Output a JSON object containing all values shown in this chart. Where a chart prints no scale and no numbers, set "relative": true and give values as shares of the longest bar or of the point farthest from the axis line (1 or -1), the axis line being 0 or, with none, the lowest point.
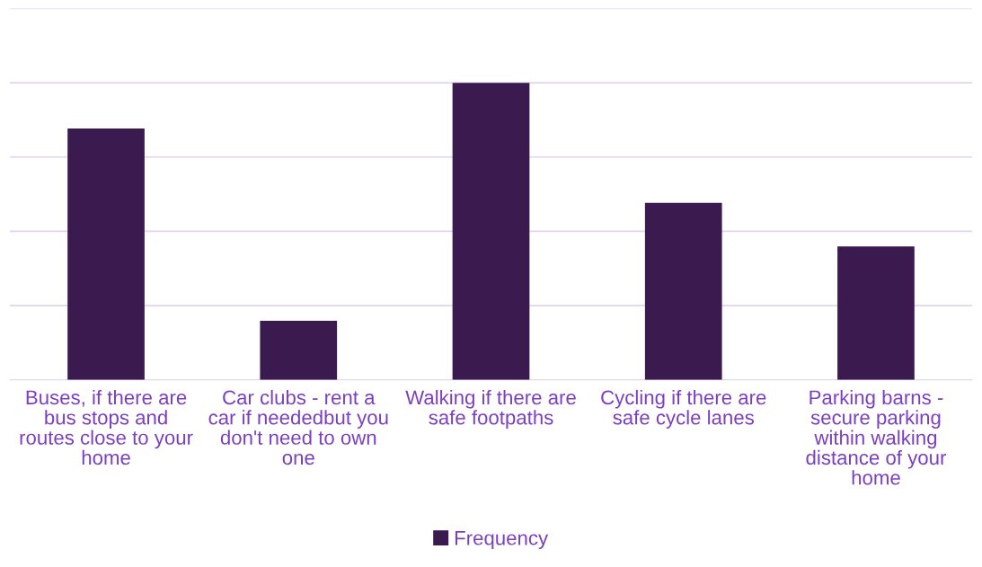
{
  "chart_data": {
    "type": "bar",
    "relative": true,
    "categories": [
      "Buses, if there are\nbus stops and\nroutes close to your\nhome",
      "Car clubs - rent a\ncar if neededbut you\ndon't need to own\none",
      "Walking if there are\nsafe footpaths",
      "Cycling if there are\nsafe cycle lanes",
      "Parking barns -\nsecure parking\nwithin walking\ndistance of your\nhome"
    ],
    "series": [
      {
        "name": "Frequency",
        "color": "#3b1a50",
        "values": [
          0.846,
          0.199,
          1,
          0.596,
          0.449
        ]
      }
    ],
    "grid": "y",
    "legend": "bottom"
  }
}
